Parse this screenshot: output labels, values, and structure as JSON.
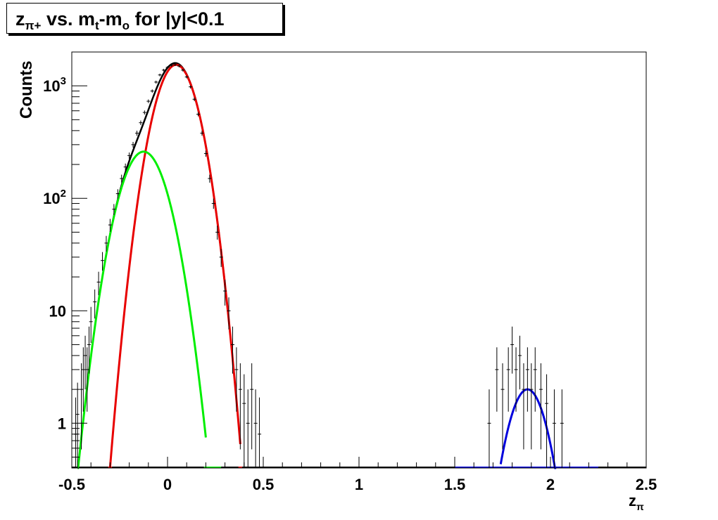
{
  "chart_data": {
    "type": "line",
    "title": {
      "main_z": "z",
      "main_sub": "π+",
      "main_vs": " vs. m",
      "m_sub_t": "t",
      "dash_m": "-m",
      "m_sub_o": "o",
      "cut": " for |y|<0.1"
    },
    "xlabel": {
      "main": "z",
      "sub": "π"
    },
    "ylabel": "Counts",
    "xlim": [
      -0.5,
      2.5
    ],
    "ylim": [
      0.4,
      2000
    ],
    "yscale": "log",
    "grid": false,
    "x_ticks": [
      "-0.5",
      "0",
      "0.5",
      "1",
      "1.5",
      "2",
      "2.5"
    ],
    "y_ticks": [
      {
        "value": 1,
        "base": "1",
        "exp": ""
      },
      {
        "value": 10,
        "base": "10",
        "exp": ""
      },
      {
        "value": 100,
        "base": "10",
        "exp": "2"
      },
      {
        "value": 1000,
        "base": "10",
        "exp": "3"
      }
    ],
    "series": [
      {
        "role": "data histogram with error bars",
        "color": "#000000",
        "points": [
          [
            -0.48,
            0.8
          ],
          [
            -0.47,
            1.2
          ],
          [
            -0.45,
            2.0
          ],
          [
            -0.44,
            3.0
          ],
          [
            -0.43,
            4.0
          ],
          [
            -0.42,
            3.0
          ],
          [
            -0.41,
            5.0
          ],
          [
            -0.4,
            8.0
          ],
          [
            -0.38,
            12.0
          ],
          [
            -0.36,
            18.0
          ],
          [
            -0.34,
            28.0
          ],
          [
            -0.32,
            40.0
          ],
          [
            -0.3,
            58.0
          ],
          [
            -0.28,
            80.0
          ],
          [
            -0.26,
            110.0
          ],
          [
            -0.24,
            150.0
          ],
          [
            -0.22,
            190.0
          ],
          [
            -0.2,
            240.0
          ],
          [
            -0.18,
            300.0
          ],
          [
            -0.16,
            380.0
          ],
          [
            -0.14,
            470.0
          ],
          [
            -0.12,
            580.0
          ],
          [
            -0.1,
            730.0
          ],
          [
            -0.08,
            900.0
          ],
          [
            -0.06,
            1080.0
          ],
          [
            -0.04,
            1250.0
          ],
          [
            -0.02,
            1380.0
          ],
          [
            0.0,
            1460.0
          ],
          [
            0.02,
            1520.0
          ],
          [
            0.04,
            1540.0
          ],
          [
            0.06,
            1500.0
          ],
          [
            0.08,
            1380.0
          ],
          [
            0.1,
            1200.0
          ],
          [
            0.12,
            980.0
          ],
          [
            0.14,
            760.0
          ],
          [
            0.16,
            560.0
          ],
          [
            0.18,
            380.0
          ],
          [
            0.2,
            250.0
          ],
          [
            0.22,
            150.0
          ],
          [
            0.24,
            90.0
          ],
          [
            0.26,
            50.0
          ],
          [
            0.28,
            30.0
          ],
          [
            0.3,
            15.0
          ],
          [
            0.32,
            10.0
          ],
          [
            0.34,
            5.0
          ],
          [
            0.36,
            3.0
          ],
          [
            0.38,
            2.0
          ],
          [
            0.4,
            1.5
          ],
          [
            0.42,
            1.0
          ],
          [
            0.44,
            2.0
          ],
          [
            0.46,
            1.0
          ],
          [
            0.48,
            0.8
          ],
          [
            1.68,
            1.0
          ],
          [
            1.72,
            3.0
          ],
          [
            1.75,
            2.0
          ],
          [
            1.78,
            3.0
          ],
          [
            1.8,
            5.0
          ],
          [
            1.82,
            3.0
          ],
          [
            1.84,
            4.0
          ],
          [
            1.86,
            2.0
          ],
          [
            1.88,
            3.0
          ],
          [
            1.9,
            2.0
          ],
          [
            1.92,
            3.0
          ],
          [
            1.95,
            2.0
          ],
          [
            1.98,
            1.5
          ],
          [
            2.02,
            1.0
          ],
          [
            2.06,
            1.0
          ]
        ]
      },
      {
        "role": "total fit",
        "color": "#000000",
        "shape": "gaussian",
        "components": [
          [
            1540,
            0.045,
            0.085
          ],
          [
            260,
            -0.125,
            0.095
          ]
        ]
      },
      {
        "role": "main gaussian",
        "color": "#e80000",
        "shape": "gaussian",
        "amp": 1540,
        "mean": 0.045,
        "sigma": 0.085,
        "xrange": [
          -0.3,
          0.38
        ]
      },
      {
        "role": "secondary gaussian",
        "color": "#00ee00",
        "shape": "gaussian",
        "amp": 260,
        "mean": -0.125,
        "sigma": 0.095,
        "xrange": [
          -0.47,
          0.2
        ]
      },
      {
        "role": "high-z gaussian",
        "color": "#0000dd",
        "shape": "gaussian",
        "amp": 2.0,
        "mean": 1.88,
        "sigma": 0.08,
        "xrange": [
          1.74,
          2.03
        ]
      }
    ]
  }
}
